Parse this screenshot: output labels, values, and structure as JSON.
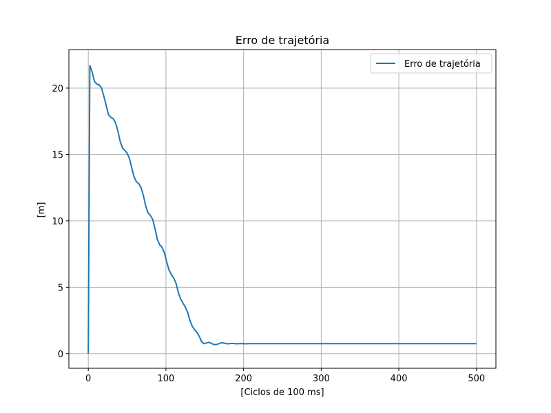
{
  "chart_data": {
    "type": "line",
    "title": "Erro de trajetória",
    "xlabel": "[Ciclos de 100 ms]",
    "ylabel": "[m]",
    "xlim": [
      -25,
      525
    ],
    "ylim": [
      -1.1,
      22.9
    ],
    "xticks": [
      0,
      100,
      200,
      300,
      400,
      500
    ],
    "yticks": [
      0,
      5,
      10,
      15,
      20
    ],
    "grid": true,
    "legend_position": "top-right",
    "series": [
      {
        "name": "Erro de trajetória",
        "color": "#1f77b4",
        "x": [
          0,
          2,
          5,
          8,
          11,
          14,
          17,
          20,
          23,
          26,
          29,
          32,
          35,
          38,
          41,
          44,
          47,
          50,
          53,
          56,
          59,
          62,
          65,
          68,
          71,
          74,
          77,
          80,
          83,
          86,
          89,
          92,
          95,
          98,
          101,
          104,
          107,
          110,
          113,
          116,
          119,
          122,
          125,
          128,
          131,
          134,
          137,
          140,
          143,
          146,
          149,
          152,
          155,
          158,
          161,
          164,
          167,
          170,
          173,
          176,
          179,
          182,
          185,
          188,
          191,
          194,
          197,
          200,
          203,
          206,
          209,
          212,
          215,
          218,
          221,
          224,
          227,
          230,
          235,
          240,
          245,
          250,
          255,
          260,
          270,
          280,
          300,
          320,
          350,
          400,
          450,
          500
        ],
        "y": [
          0,
          21.7,
          21.2,
          20.5,
          20.3,
          20.25,
          20.0,
          19.4,
          18.7,
          18.0,
          17.8,
          17.7,
          17.4,
          16.8,
          16.0,
          15.5,
          15.3,
          15.1,
          14.7,
          14.0,
          13.3,
          12.95,
          12.8,
          12.5,
          11.9,
          11.1,
          10.6,
          10.4,
          10.1,
          9.4,
          8.6,
          8.2,
          8.0,
          7.6,
          6.9,
          6.3,
          5.95,
          5.7,
          5.3,
          4.6,
          4.1,
          3.8,
          3.5,
          3.1,
          2.5,
          2.05,
          1.8,
          1.6,
          1.3,
          0.9,
          0.75,
          0.8,
          0.85,
          0.8,
          0.7,
          0.68,
          0.72,
          0.8,
          0.82,
          0.78,
          0.74,
          0.75,
          0.77,
          0.76,
          0.74,
          0.75,
          0.76,
          0.75,
          0.74,
          0.75,
          0.75,
          0.75,
          0.75,
          0.75,
          0.75,
          0.75,
          0.75,
          0.75,
          0.75,
          0.75,
          0.75,
          0.75,
          0.75,
          0.75,
          0.75,
          0.75,
          0.75,
          0.75,
          0.75,
          0.75,
          0.75,
          0.75
        ]
      }
    ]
  }
}
